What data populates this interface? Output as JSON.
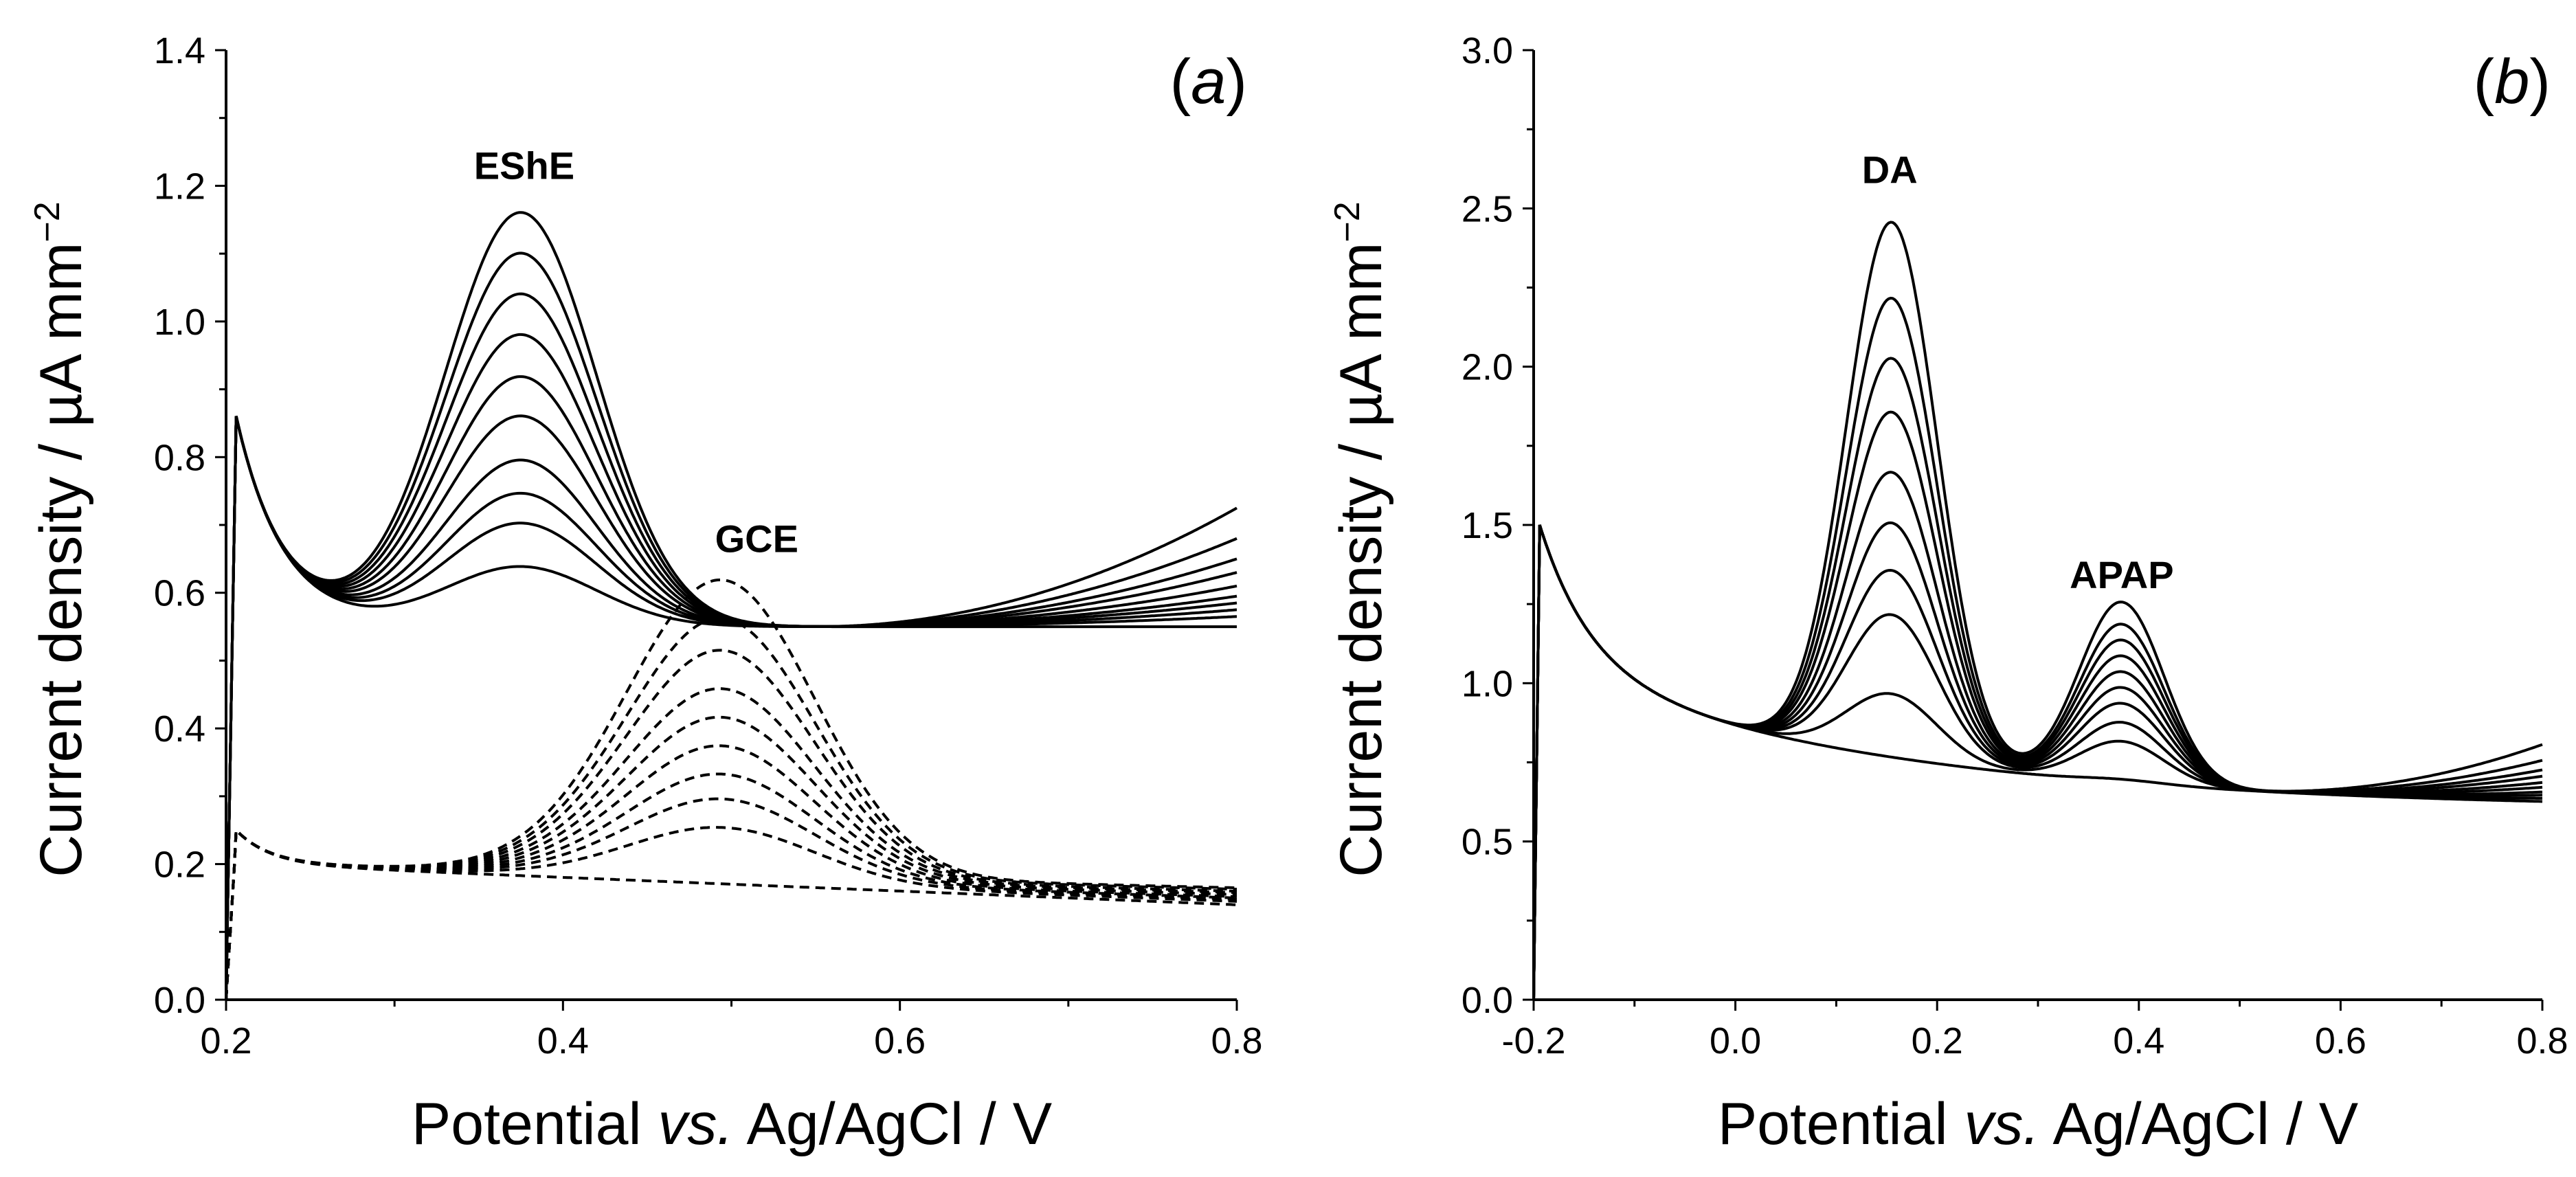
{
  "chart_data": [
    {
      "type": "line",
      "panel_label": "(a)",
      "panel_letter": "a",
      "xlabel_pre": "Potential ",
      "xlabel_italic": "vs.",
      "xlabel_post": " Ag/AgCl / V",
      "ylabel_main": "Current density / µA mm",
      "ylabel_sup": "−2",
      "xlim": [
        0.2,
        0.8
      ],
      "ylim": [
        0.0,
        1.4
      ],
      "xticks": [
        "0.2",
        "0.4",
        "0.6",
        "0.8"
      ],
      "yticks": [
        "0.0",
        "0.2",
        "0.4",
        "0.6",
        "0.8",
        "1.0",
        "1.2",
        "1.4"
      ],
      "annotations": [
        {
          "text": "EShE",
          "x": 0.377,
          "y": 1.21
        },
        {
          "text": "GCE",
          "x": 0.515,
          "y": 0.66
        }
      ],
      "series_groups": [
        {
          "name": "EShE",
          "style": "solid",
          "peak_x": 0.375,
          "peak_values": [
            0.638,
            0.702,
            0.746,
            0.795,
            0.86,
            0.918,
            0.98,
            1.04,
            1.1,
            1.16
          ],
          "end_values_at_0_8": [
            0.54,
            0.555,
            0.565,
            0.575,
            0.585,
            0.6,
            0.62,
            0.64,
            0.67,
            0.715
          ]
        },
        {
          "name": "GCE",
          "style": "dashed",
          "peak_x": 0.495,
          "peak_values": [
            0.145,
            0.225,
            0.265,
            0.3,
            0.34,
            0.38,
            0.42,
            0.475,
            0.52,
            0.575
          ],
          "end_values_at_0_8": [
            0.14,
            0.145,
            0.148,
            0.15,
            0.152,
            0.155,
            0.158,
            0.16,
            0.163,
            0.165
          ]
        }
      ]
    },
    {
      "type": "line",
      "panel_label": "(b)",
      "panel_letter": "b",
      "xlabel_pre": "Potential ",
      "xlabel_italic": "vs.",
      "xlabel_post": " Ag/AgCl / V",
      "ylabel_main": "Current density / µA mm",
      "ylabel_sup": "−2",
      "xlim": [
        -0.2,
        0.8
      ],
      "ylim": [
        0.0,
        3.0
      ],
      "xticks": [
        "-0.2",
        "0.0",
        "0.2",
        "0.4",
        "0.6",
        "0.8"
      ],
      "yticks": [
        "0.0",
        "0.5",
        "1.0",
        "1.5",
        "2.0",
        "2.5",
        "3.0"
      ],
      "annotations": [
        {
          "text": "DA",
          "x": 0.153,
          "y": 2.58
        },
        {
          "text": "APAP",
          "x": 0.383,
          "y": 1.3
        }
      ],
      "series_groups": [
        {
          "name": "DA + APAP",
          "style": "solid",
          "da_peak_x": 0.155,
          "da_peak_values": [
            0.7,
            0.98,
            1.23,
            1.37,
            1.52,
            1.68,
            1.87,
            2.04,
            2.23,
            2.47
          ],
          "apap_peak_x": 0.383,
          "apap_peak_values": [
            0.66,
            0.78,
            0.84,
            0.9,
            0.95,
            1.0,
            1.05,
            1.1,
            1.15,
            1.22
          ],
          "end_values_at_0_8": [
            0.6,
            0.61,
            0.62,
            0.63,
            0.645,
            0.66,
            0.68,
            0.7,
            0.73,
            0.78
          ]
        }
      ]
    }
  ]
}
